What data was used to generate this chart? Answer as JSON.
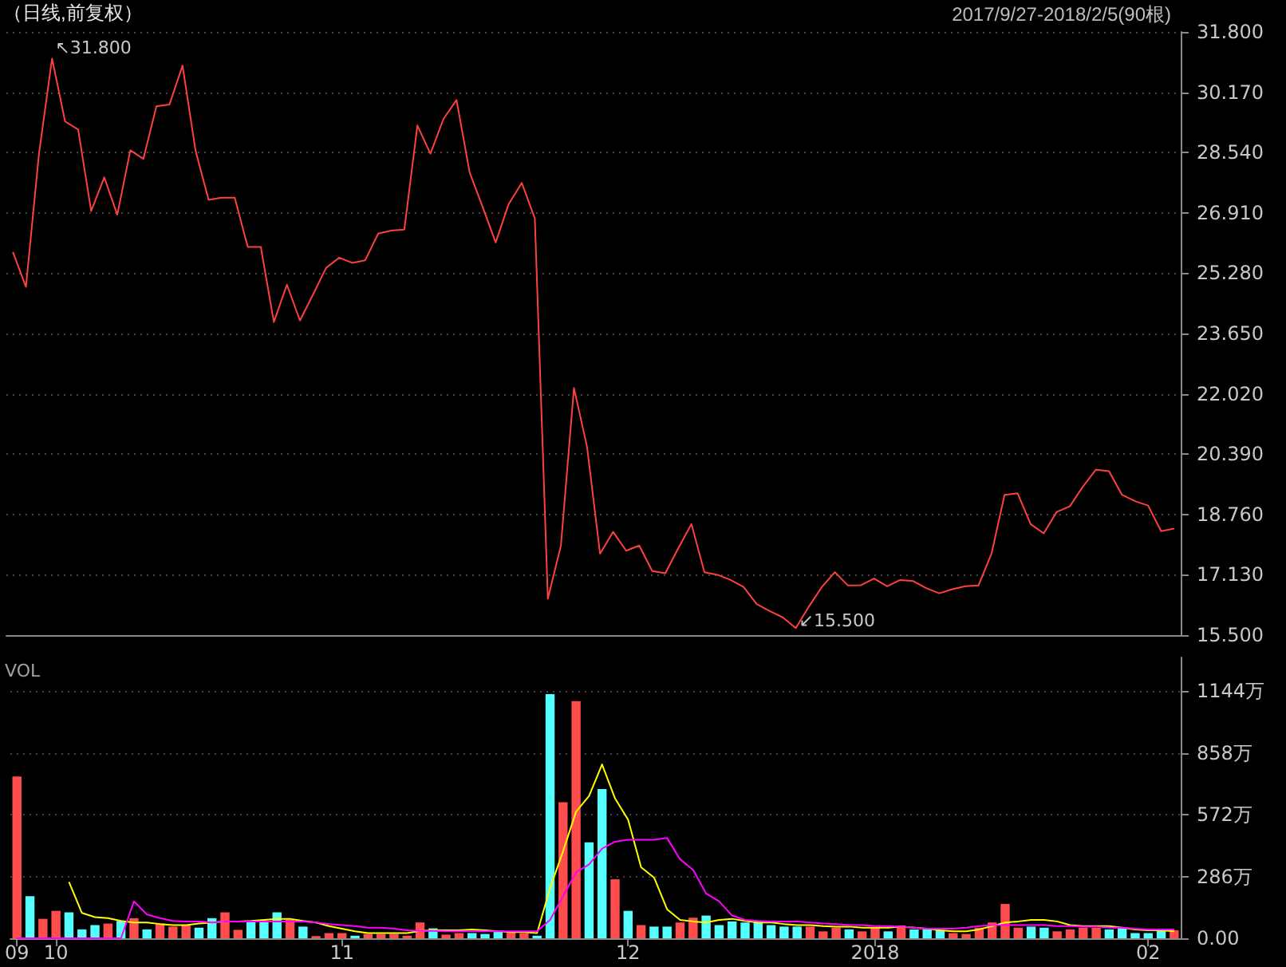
{
  "chart_data": [
    {
      "type": "line",
      "title": "（日线,前复权）",
      "subtitle": "2017/9/27-2018/2/5(90根)",
      "color": "#ff4040",
      "categories": [
        "09",
        null,
        null,
        "10",
        null,
        null,
        null,
        null,
        null,
        null,
        null,
        null,
        null,
        null,
        null,
        null,
        null,
        null,
        null,
        null,
        null,
        null,
        null,
        null,
        null,
        "11",
        null,
        null,
        null,
        null,
        null,
        null,
        null,
        null,
        null,
        null,
        null,
        null,
        null,
        null,
        null,
        null,
        null,
        null,
        null,
        null,
        null,
        "12",
        null,
        null,
        null,
        null,
        null,
        null,
        null,
        null,
        null,
        null,
        null,
        null,
        null,
        null,
        null,
        null,
        null,
        null,
        "2018",
        null,
        null,
        null,
        null,
        null,
        null,
        null,
        null,
        null,
        null,
        null,
        null,
        null,
        null,
        null,
        null,
        null,
        null,
        null,
        null,
        "02",
        null,
        null
      ],
      "values": [
        25.85,
        24.91,
        28.51,
        31.08,
        29.38,
        29.16,
        26.96,
        27.87,
        26.86,
        28.6,
        28.37,
        29.79,
        29.84,
        30.89,
        28.59,
        27.26,
        27.32,
        27.32,
        25.99,
        25.99,
        23.96,
        24.97,
        24.0,
        24.7,
        25.42,
        25.7,
        25.56,
        25.63,
        26.35,
        26.43,
        26.46,
        29.27,
        28.51,
        29.45,
        29.96,
        28.01,
        27.07,
        26.11,
        27.15,
        27.72,
        26.76,
        16.48,
        17.92,
        22.18,
        20.59,
        17.7,
        18.29,
        17.78,
        17.92,
        17.23,
        17.17,
        17.85,
        18.5,
        17.2,
        17.13,
        16.99,
        16.8,
        16.34,
        16.15,
        15.98,
        15.69,
        16.27,
        16.8,
        17.2,
        16.84,
        16.85,
        17.03,
        16.82,
        16.99,
        16.96,
        16.77,
        16.63,
        16.74,
        16.82,
        16.84,
        17.7,
        19.29,
        19.33,
        18.5,
        18.25,
        18.83,
        18.98,
        19.51,
        19.97,
        19.93,
        19.29,
        19.12,
        19.0,
        18.31,
        18.38
      ],
      "ylim": [
        15.5,
        31.8
      ],
      "yticks": [
        {
          "value": 15.5,
          "label": "15.500"
        },
        {
          "value": 17.13,
          "label": "17.130"
        },
        {
          "value": 18.76,
          "label": "18.760"
        },
        {
          "value": 20.39,
          "label": "20.390"
        },
        {
          "value": 22.02,
          "label": "22.020"
        },
        {
          "value": 23.65,
          "label": "23.650"
        },
        {
          "value": 25.28,
          "label": "25.280"
        },
        {
          "value": 26.91,
          "label": "26.910"
        },
        {
          "value": 28.54,
          "label": "28.540"
        },
        {
          "value": 30.17,
          "label": "30.170"
        },
        {
          "value": 31.8,
          "label": "31.800"
        }
      ],
      "grid": "y",
      "tick_labels": "y",
      "annotations": [
        "↖31.800",
        "↙15.500"
      ]
    },
    {
      "type": "bar",
      "ylabel": "VOL",
      "categories": [
        "09",
        null,
        null,
        "10",
        null,
        null,
        null,
        null,
        null,
        null,
        null,
        null,
        null,
        null,
        null,
        null,
        null,
        null,
        null,
        null,
        null,
        null,
        null,
        null,
        null,
        "11",
        null,
        null,
        null,
        null,
        null,
        null,
        null,
        null,
        null,
        null,
        null,
        null,
        null,
        null,
        null,
        null,
        null,
        null,
        null,
        null,
        null,
        "12",
        null,
        null,
        null,
        null,
        null,
        null,
        null,
        null,
        null,
        null,
        null,
        null,
        null,
        null,
        null,
        null,
        null,
        null,
        "2018",
        null,
        null,
        null,
        null,
        null,
        null,
        null,
        null,
        null,
        null,
        null,
        null,
        null,
        null,
        null,
        null,
        null,
        null,
        null,
        null,
        "02",
        null,
        null
      ],
      "series": [
        {
          "type": "bar",
          "colors": [
            "#ff4d4d",
            "#54ffff",
            "#ff4d4d",
            "#ff4d4d",
            "#54ffff",
            "#54ffff",
            "#54ffff",
            "#ff4d4d",
            "#54ffff",
            "#ff4d4d",
            "#54ffff",
            "#ff4d4d",
            "#ff4d4d",
            "#ff4d4d",
            "#54ffff",
            "#54ffff",
            "#ff4d4d",
            "#ff4d4d",
            "#54ffff",
            "#54ffff",
            "#54ffff",
            "#ff4d4d",
            "#54ffff",
            "#ff4d4d",
            "#ff4d4d",
            "#ff4d4d",
            "#54ffff",
            "#ff4d4d",
            "#ff4d4d",
            "#ff4d4d",
            "#ff4d4d",
            "#ff4d4d",
            "#54ffff",
            "#ff4d4d",
            "#ff4d4d",
            "#54ffff",
            "#54ffff",
            "#54ffff",
            "#ff4d4d",
            "#ff4d4d",
            "#54ffff",
            "#54ffff",
            "#ff4d4d",
            "#ff4d4d",
            "#54ffff",
            "#54ffff",
            "#ff4d4d",
            "#54ffff",
            "#ff4d4d",
            "#54ffff",
            "#54ffff",
            "#ff4d4d",
            "#ff4d4d",
            "#54ffff",
            "#54ffff",
            "#54ffff",
            "#54ffff",
            "#54ffff",
            "#54ffff",
            "#54ffff",
            "#54ffff",
            "#ff4d4d",
            "#ff4d4d",
            "#ff4d4d",
            "#54ffff",
            "#ff4d4d",
            "#ff4d4d",
            "#54ffff",
            "#ff4d4d",
            "#54ffff",
            "#54ffff",
            "#54ffff",
            "#ff4d4d",
            "#ff4d4d",
            "#ff4d4d",
            "#ff4d4d",
            "#ff4d4d",
            "#ff4d4d",
            "#54ffff",
            "#54ffff",
            "#ff4d4d",
            "#ff4d4d",
            "#ff4d4d",
            "#ff4d4d",
            "#54ffff",
            "#54ffff",
            "#54ffff",
            "#54ffff",
            "#54ffff",
            "#ff4d4d"
          ],
          "values": [
            749,
            195,
            90,
            127,
            120,
            41,
            61,
            68,
            80,
            93,
            41,
            68,
            54,
            61,
            49,
            93,
            120,
            39,
            80,
            80,
            120,
            85,
            54,
            10,
            24,
            24,
            12,
            20,
            20,
            20,
            12,
            73,
            46,
            17,
            24,
            24,
            20,
            32,
            32,
            24,
            12,
            1130,
            630,
            1098,
            444,
            691,
            273,
            127,
            61,
            54,
            54,
            73,
            95,
            105,
            61,
            78,
            73,
            76,
            61,
            54,
            54,
            54,
            32,
            49,
            41,
            32,
            49,
            32,
            59,
            41,
            41,
            37,
            24,
            20,
            49,
            73,
            159,
            49,
            54,
            49,
            32,
            41,
            49,
            49,
            41,
            49,
            24,
            24,
            37,
            37
          ]
        },
        {
          "type": "line",
          "color": "#ffff00",
          "values": [
            null,
            null,
            null,
            null,
            261,
            117,
            98,
            93,
            80,
            73,
            73,
            66,
            61,
            61,
            68,
            73,
            78,
            78,
            80,
            85,
            90,
            90,
            80,
            73,
            56,
            44,
            32,
            24,
            24,
            24,
            24,
            34,
            37,
            37,
            37,
            41,
            37,
            32,
            29,
            29,
            24,
            232,
            403,
            586,
            659,
            805,
            647,
            549,
            329,
            281,
            134,
            85,
            78,
            73,
            85,
            90,
            80,
            73,
            73,
            66,
            61,
            61,
            56,
            54,
            54,
            49,
            49,
            49,
            54,
            49,
            44,
            37,
            32,
            32,
            41,
            56,
            73,
            78,
            85,
            85,
            78,
            61,
            56,
            56,
            56,
            49,
            41,
            37,
            37,
            32
          ]
        },
        {
          "type": "line",
          "color": "#ff00ff",
          "values": [
            0,
            0,
            0,
            0,
            0,
            0,
            0,
            0,
            0,
            171,
            110,
            93,
            80,
            78,
            78,
            73,
            78,
            78,
            78,
            78,
            78,
            78,
            78,
            73,
            66,
            61,
            56,
            49,
            49,
            44,
            37,
            34,
            34,
            32,
            32,
            32,
            32,
            32,
            32,
            32,
            32,
            85,
            195,
            305,
            342,
            415,
            447,
            456,
            456,
            456,
            464,
            366,
            317,
            207,
            171,
            105,
            85,
            80,
            78,
            78,
            78,
            73,
            68,
            66,
            61,
            61,
            56,
            56,
            54,
            49,
            44,
            44,
            44,
            49,
            56,
            61,
            61,
            61,
            61,
            61,
            56,
            56,
            54,
            54,
            49,
            49,
            44,
            41,
            41,
            41
          ]
        }
      ],
      "ylim": [
        0,
        1300
      ],
      "yticks": [
        {
          "value": 0,
          "label": "0.00"
        },
        {
          "value": 286,
          "label": "286万"
        },
        {
          "value": 572,
          "label": "572万"
        },
        {
          "value": 858,
          "label": "858万"
        },
        {
          "value": 1144,
          "label": "1144万"
        }
      ],
      "grid": "y"
    }
  ]
}
